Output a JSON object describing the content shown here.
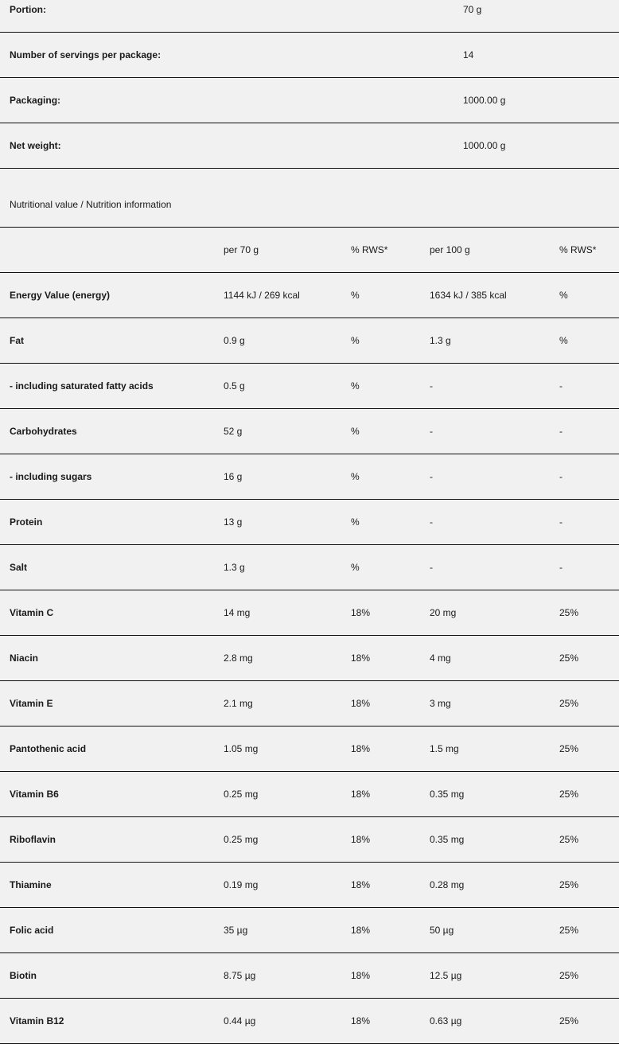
{
  "product_info": [
    {
      "label": "Portion:",
      "value": "70 g"
    },
    {
      "label": "Number of servings per package:",
      "value": "14"
    },
    {
      "label": "Packaging:",
      "value": "1000.00 g"
    },
    {
      "label": "Net weight:",
      "value": "1000.00 g"
    }
  ],
  "nutrition": {
    "heading": "Nutritional value / Nutrition information",
    "columns": [
      "",
      "per 70 g",
      "% RWS*",
      "per 100 g",
      "% RWS*"
    ],
    "rows": [
      [
        "Energy Value (energy)",
        "1144 kJ / 269 kcal",
        "%",
        "1634 kJ / 385 kcal",
        "%"
      ],
      [
        "Fat",
        "0.9 g",
        "%",
        "1.3 g",
        "%"
      ],
      [
        "- including saturated fatty acids",
        "0.5 g",
        "%",
        "-",
        "-"
      ],
      [
        "Carbohydrates",
        "52 g",
        "%",
        "-",
        "-"
      ],
      [
        "- including sugars",
        "16 g",
        "%",
        "-",
        "-"
      ],
      [
        "Protein",
        "13 g",
        "%",
        "-",
        "-"
      ],
      [
        "Salt",
        "1.3 g",
        "%",
        "-",
        "-"
      ],
      [
        "Vitamin C",
        "14 mg",
        "18%",
        "20 mg",
        "25%"
      ],
      [
        "Niacin",
        "2.8 mg",
        "18%",
        "4 mg",
        "25%"
      ],
      [
        "Vitamin E",
        "2.1 mg",
        "18%",
        "3 mg",
        "25%"
      ],
      [
        "Pantothenic acid",
        "1.05 mg",
        "18%",
        "1.5 mg",
        "25%"
      ],
      [
        "Vitamin B6",
        "0.25 mg",
        "18%",
        "0.35 mg",
        "25%"
      ],
      [
        "Riboflavin",
        "0.25 mg",
        "18%",
        "0.35 mg",
        "25%"
      ],
      [
        "Thiamine",
        "0.19 mg",
        "18%",
        "0.28 mg",
        "25%"
      ],
      [
        "Folic acid",
        "35 µg",
        "18%",
        "50 µg",
        "25%"
      ],
      [
        "Biotin",
        "8.75 µg",
        "18%",
        "12.5 µg",
        "25%"
      ],
      [
        "Vitamin B12",
        "0.44 µg",
        "18%",
        "0.63 µg",
        "25%"
      ]
    ]
  }
}
